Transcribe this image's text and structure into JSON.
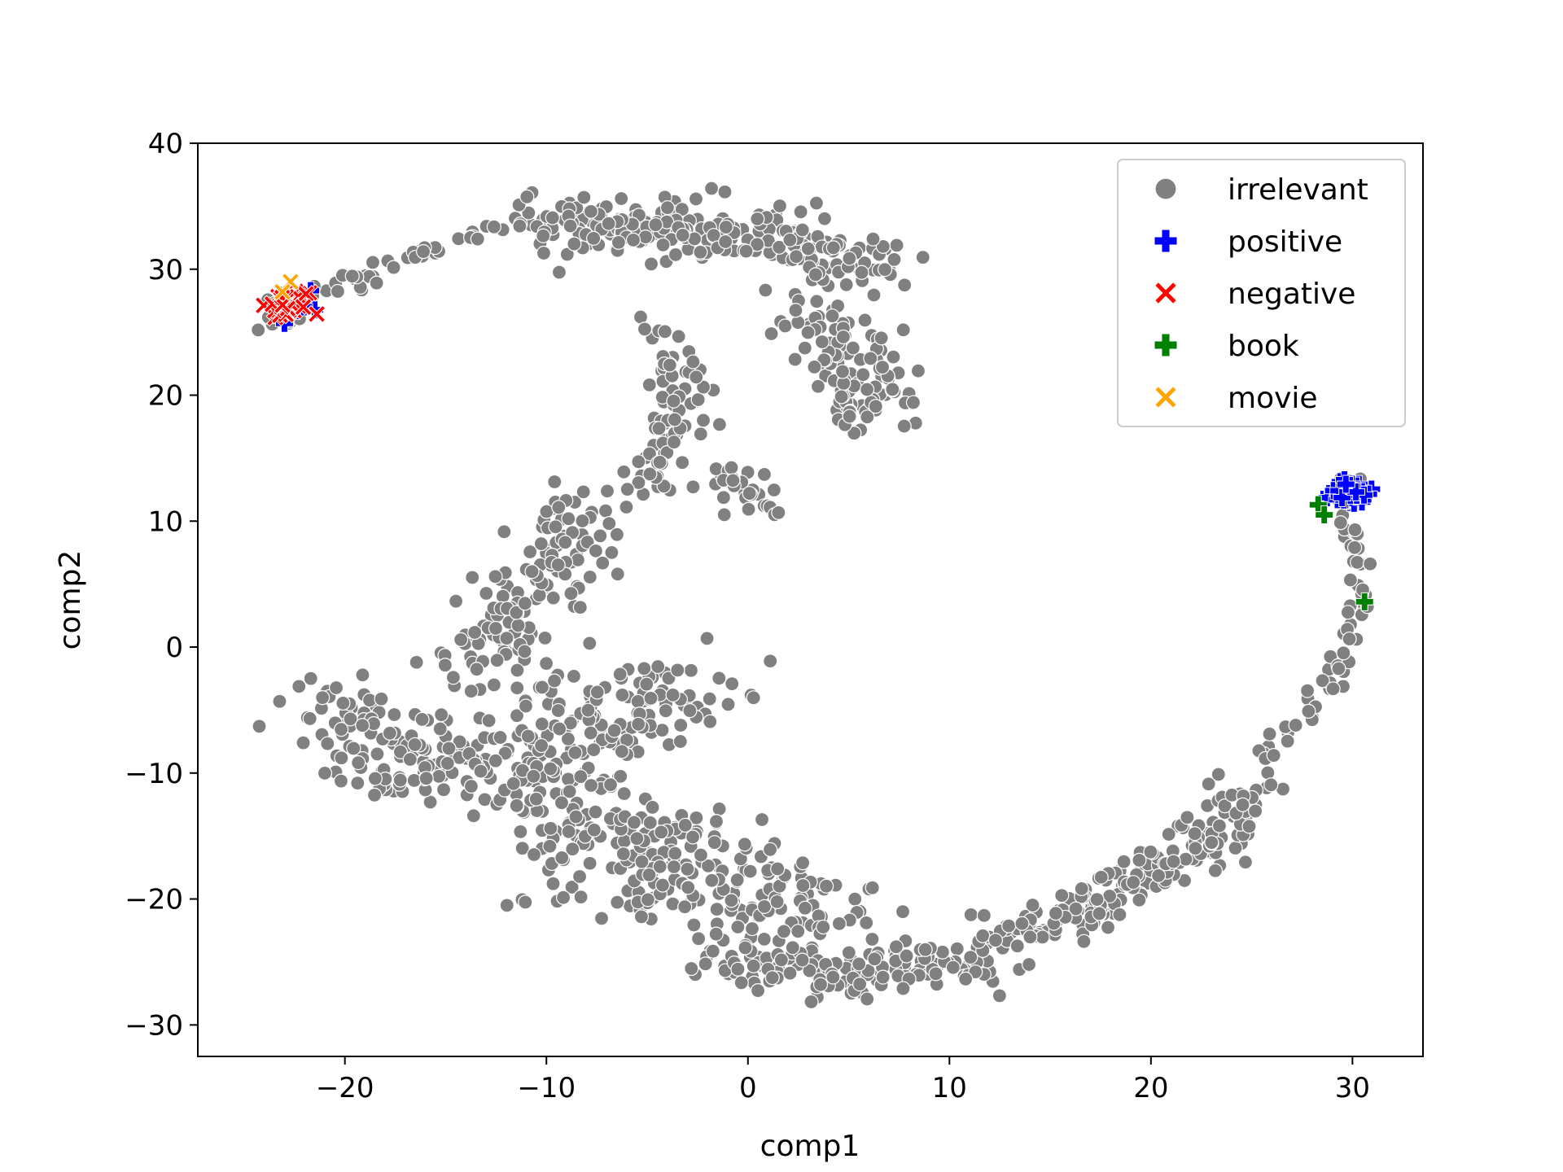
{
  "chart_data": {
    "type": "scatter",
    "title": "",
    "xlabel": "comp1",
    "ylabel": "comp2",
    "xlim": [
      -27.3,
      33.5
    ],
    "ylim": [
      -32.5,
      40
    ],
    "xticks": [
      -20,
      -10,
      0,
      10,
      20,
      30
    ],
    "yticks": [
      -30,
      -20,
      -10,
      0,
      10,
      20,
      30,
      40
    ],
    "grid": false,
    "legend_position": "top-right",
    "series": [
      {
        "name": "irrelevant",
        "color": "#808080",
        "marker": "circle",
        "regions": [
          {
            "note": "thin arm towards upper left",
            "points": [
              [
                -24.5,
                24.8
              ],
              [
                -22.0,
                27.0
              ],
              [
                -20.0,
                28.5
              ],
              [
                -18.5,
                30.0
              ],
              [
                -16.5,
                31.0
              ],
              [
                -15.0,
                32.0
              ],
              [
                -13.0,
                32.8
              ],
              [
                -11.5,
                33.5
              ],
              [
                -10.0,
                34.0
              ]
            ],
            "spread": 0.7,
            "count": 55
          },
          {
            "note": "upper arc",
            "points": [
              [
                -10.0,
                33.0
              ],
              [
                -7.0,
                33.5
              ],
              [
                -4.0,
                33.0
              ],
              [
                -1.0,
                33.0
              ],
              [
                2.0,
                32.5
              ],
              [
                4.5,
                31.0
              ],
              [
                7.0,
                29.5
              ]
            ],
            "spread": 2.3,
            "count": 240
          },
          {
            "note": "upper right lobe",
            "points": [
              [
                3.0,
                26.0
              ],
              [
                5.0,
                23.0
              ],
              [
                6.5,
                20.0
              ],
              [
                5.0,
                18.5
              ]
            ],
            "spread": 2.0,
            "count": 120
          },
          {
            "note": "neck going down",
            "points": [
              [
                -4.5,
                25.5
              ],
              [
                -3.5,
                20.0
              ],
              [
                -4.0,
                15.0
              ],
              [
                -5.0,
                12.0
              ]
            ],
            "spread": 1.5,
            "count": 80
          },
          {
            "note": "neck right branch",
            "points": [
              [
                -1.0,
                14.0
              ],
              [
                0.5,
                11.0
              ],
              [
                1.5,
                10.5
              ]
            ],
            "spread": 1.2,
            "count": 30
          },
          {
            "note": "mid left band",
            "points": [
              [
                -8.0,
                11.5
              ],
              [
                -10.0,
                7.0
              ],
              [
                -11.5,
                2.0
              ],
              [
                -13.0,
                -2.0
              ]
            ],
            "spread": 2.5,
            "count": 140
          },
          {
            "note": "lower left body",
            "points": [
              [
                -20.5,
                -4.0
              ],
              [
                -17.0,
                -9.0
              ],
              [
                -13.0,
                -10.0
              ],
              [
                -9.0,
                -8.0
              ],
              [
                -5.0,
                -4.0
              ],
              [
                -2.0,
                -4.0
              ]
            ],
            "spread": 3.5,
            "count": 300
          },
          {
            "note": "lower middle",
            "points": [
              [
                -10.0,
                -14.0
              ],
              [
                -6.0,
                -16.0
              ],
              [
                -2.0,
                -18.0
              ],
              [
                1.0,
                -20.0
              ],
              [
                4.0,
                -20.0
              ]
            ],
            "spread": 4.0,
            "count": 260
          },
          {
            "note": "bottom",
            "points": [
              [
                -2.0,
                -24.0
              ],
              [
                1.0,
                -25.5
              ],
              [
                5.0,
                -26.0
              ],
              [
                9.0,
                -25.0
              ],
              [
                12.0,
                -25.5
              ]
            ],
            "spread": 1.8,
            "count": 150
          },
          {
            "note": "lower right band",
            "points": [
              [
                12.0,
                -23.5
              ],
              [
                15.0,
                -22.0
              ],
              [
                18.0,
                -19.5
              ],
              [
                21.0,
                -17.0
              ],
              [
                23.5,
                -14.5
              ],
              [
                25.0,
                -11.0
              ]
            ],
            "spread": 1.6,
            "count": 200
          },
          {
            "note": "right arc up",
            "points": [
              [
                25.5,
                -9.0
              ],
              [
                27.5,
                -5.5
              ],
              [
                29.0,
                -2.5
              ],
              [
                30.0,
                0.5
              ],
              [
                30.3,
                4.5
              ],
              [
                30.0,
                8.0
              ],
              [
                29.5,
                12.0
              ],
              [
                29.5,
                16.0
              ]
            ],
            "spread": 0.6,
            "count": 75
          },
          {
            "note": "inside negative cluster",
            "points": [
              [
                -23.0,
                27.0
              ]
            ],
            "spread": 1.0,
            "count": 12
          },
          {
            "note": "inside positive cluster",
            "points": [
              [
                29.8,
                12.5
              ]
            ],
            "spread": 0.8,
            "count": 10
          }
        ]
      },
      {
        "name": "positive",
        "color": "#0000ff",
        "marker": "plus",
        "regions": [
          {
            "note": "right cluster",
            "points": [
              [
                29.8,
                12.3
              ]
            ],
            "spread": 0.7,
            "count": 75
          },
          {
            "note": "left cluster",
            "points": [
              [
                -22.5,
                27.2
              ]
            ],
            "spread": 0.8,
            "count": 6
          }
        ],
        "extra_points": [
          [
            -23.0,
            25.7
          ],
          [
            -21.7,
            28.3
          ]
        ]
      },
      {
        "name": "negative",
        "color": "#ff0000",
        "marker": "x",
        "regions": [
          {
            "note": "left cluster",
            "points": [
              [
                -22.8,
                27.2
              ]
            ],
            "spread": 0.8,
            "count": 40
          }
        ]
      },
      {
        "name": "book",
        "color": "#008000",
        "marker": "plus",
        "points": [
          [
            28.3,
            11.3
          ],
          [
            28.6,
            10.5
          ],
          [
            30.6,
            3.6
          ]
        ]
      },
      {
        "name": "movie",
        "color": "#ffa500",
        "marker": "x",
        "points": [
          [
            -22.7,
            29.0
          ],
          [
            -23.1,
            28.2
          ]
        ]
      }
    ]
  }
}
